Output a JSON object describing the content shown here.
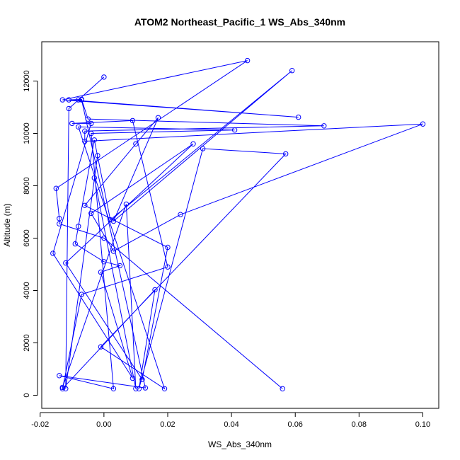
{
  "chart_data": {
    "type": "line",
    "title": "ATOM2 Northeast_Pacific_1 WS_Abs_340nm",
    "xlabel": "WS_Abs_340nm",
    "ylabel": "Altitude (m)",
    "xlim": [
      -0.0195,
      0.105
    ],
    "ylim": [
      -500,
      13500
    ],
    "x_ticks": [
      -0.02,
      0.0,
      0.02,
      0.04,
      0.06,
      0.08,
      0.1
    ],
    "x_tick_labels": [
      "-0.02",
      "0.00",
      "0.02",
      "0.04",
      "0.06",
      "0.08",
      "0.10"
    ],
    "y_ticks": [
      0,
      2000,
      4000,
      6000,
      8000,
      10000,
      12000
    ],
    "y_tick_labels": [
      "0",
      "2000",
      "4000",
      "6000",
      "8000",
      "10000",
      "12000"
    ],
    "color": "#0000ff",
    "marker": "open-circle",
    "series": [
      {
        "x": [
          0.056,
          0.0,
          -0.014,
          -0.014,
          -0.015,
          0.045,
          -0.013,
          0.061,
          -0.011,
          -0.007,
          -0.005,
          0.069,
          -0.006,
          -0.006,
          0.1,
          0.024,
          0.003,
          -0.004,
          0.028,
          -0.012,
          0.012,
          0.02,
          -0.006,
          0.01,
          0.017,
          0.003,
          0.059,
          0.002,
          -0.003,
          -0.008,
          -0.009,
          0.0,
          0.005,
          -0.001,
          0.009,
          -0.016,
          -0.004,
          -0.01,
          0.009,
          0.02,
          -0.007,
          -0.013,
          0.016,
          0.011,
          0.031,
          0.057,
          -0.001,
          0.019,
          -0.008,
          0.041,
          -0.004,
          0.003,
          -0.014,
          0.013,
          -0.007,
          -0.008,
          0.0,
          -0.011,
          -0.012,
          -0.002,
          -0.003,
          0.01,
          0.007,
          -0.013
        ],
        "y": [
          250,
          6000,
          6550,
          6750,
          7900,
          12780,
          11280,
          10620,
          11280,
          11300,
          10550,
          10290,
          10090,
          9700,
          10360,
          6900,
          5500,
          6950,
          9600,
          5050,
          600,
          5650,
          7250,
          9600,
          10600,
          6650,
          12400,
          6700,
          9750,
          6450,
          5780,
          5100,
          4950,
          4700,
          650,
          5420,
          10380,
          10380,
          10490,
          4900,
          3850,
          250,
          4030,
          250,
          9420,
          9220,
          1850,
          250,
          10250,
          10130,
          10000,
          250,
          750,
          280,
          11280,
          11280,
          12150,
          10950,
          250,
          9150,
          8300,
          250,
          7300,
          300
        ]
      }
    ]
  }
}
